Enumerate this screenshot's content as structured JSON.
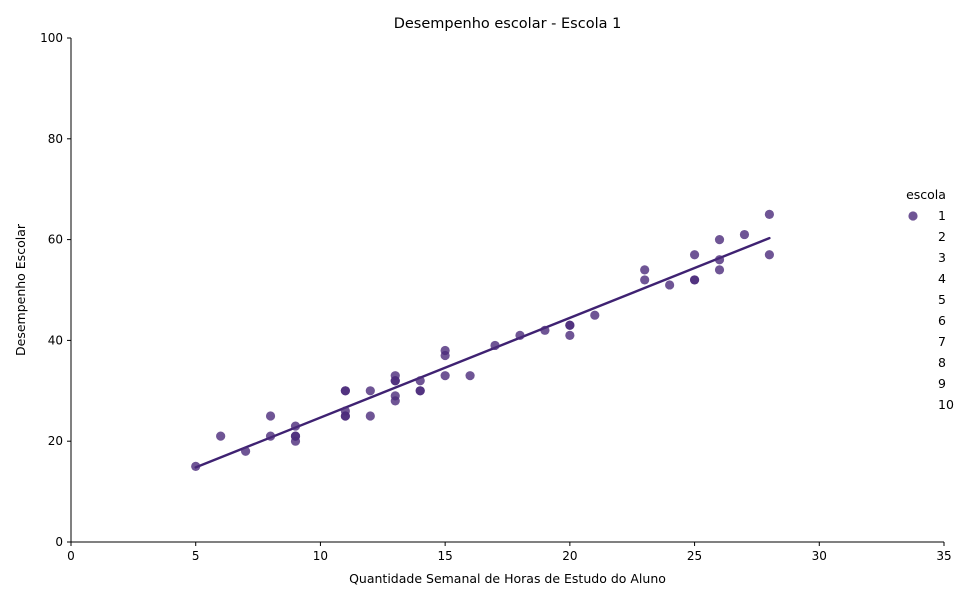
{
  "chart_data": {
    "type": "scatter",
    "title": "Desempenho escolar - Escola 1",
    "xlabel": "Quantidade Semanal de Horas de Estudo do Aluno",
    "ylabel": "Desempenho Escolar",
    "xlim": [
      0,
      35
    ],
    "ylim": [
      0,
      100
    ],
    "xticks": [
      0,
      5,
      10,
      15,
      20,
      25,
      30,
      35
    ],
    "yticks": [
      0,
      20,
      40,
      60,
      80,
      100
    ],
    "grid": false,
    "legend_placement": "right",
    "legend": {
      "title": "escola",
      "entries": [
        "1",
        "2",
        "3",
        "4",
        "5",
        "6",
        "7",
        "8",
        "9",
        "10"
      ]
    },
    "marker_color": "#4b2a7b",
    "line_color": "#3f2272",
    "series": [
      {
        "name": "1",
        "points": [
          [
            5,
            15
          ],
          [
            6,
            21
          ],
          [
            7,
            18
          ],
          [
            8,
            25
          ],
          [
            8,
            21
          ],
          [
            9,
            23
          ],
          [
            9,
            21
          ],
          [
            9,
            20
          ],
          [
            9,
            21
          ],
          [
            11,
            30
          ],
          [
            11,
            30
          ],
          [
            11,
            26
          ],
          [
            11,
            25
          ],
          [
            11,
            25
          ],
          [
            12,
            30
          ],
          [
            12,
            25
          ],
          [
            13,
            33
          ],
          [
            13,
            32
          ],
          [
            13,
            32
          ],
          [
            13,
            29
          ],
          [
            13,
            28
          ],
          [
            14,
            32
          ],
          [
            14,
            30
          ],
          [
            14,
            30
          ],
          [
            15,
            38
          ],
          [
            15,
            37
          ],
          [
            15,
            33
          ],
          [
            16,
            33
          ],
          [
            17,
            39
          ],
          [
            18,
            41
          ],
          [
            19,
            42
          ],
          [
            20,
            43
          ],
          [
            20,
            43
          ],
          [
            20,
            41
          ],
          [
            21,
            45
          ],
          [
            23,
            54
          ],
          [
            23,
            52
          ],
          [
            24,
            51
          ],
          [
            25,
            57
          ],
          [
            25,
            52
          ],
          [
            25,
            52
          ],
          [
            26,
            60
          ],
          [
            26,
            56
          ],
          [
            26,
            54
          ],
          [
            27,
            61
          ],
          [
            28,
            65
          ],
          [
            28,
            57
          ]
        ],
        "fit_line": {
          "x": [
            5,
            28
          ],
          "y": [
            14.8,
            60.3
          ]
        }
      }
    ]
  }
}
